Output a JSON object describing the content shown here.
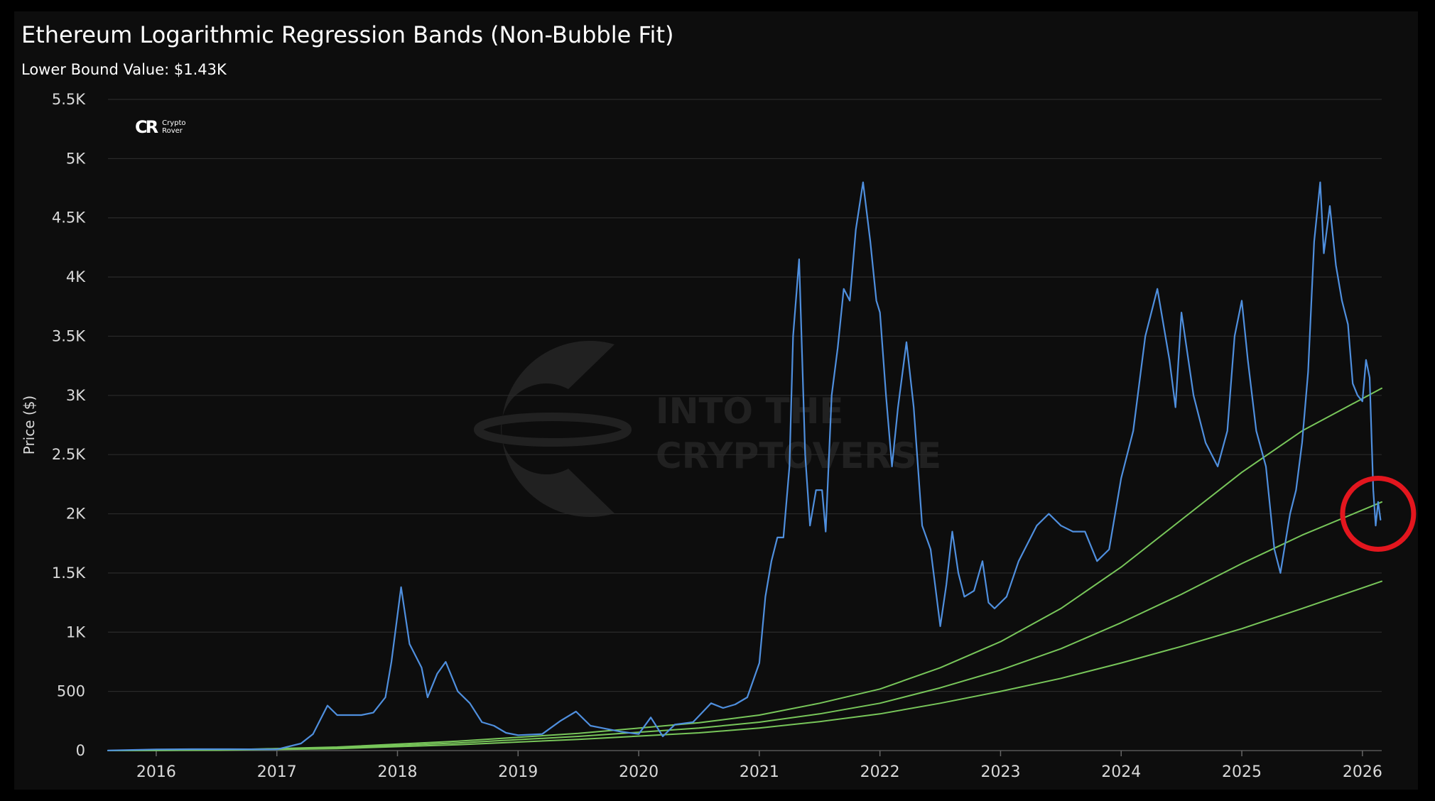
{
  "header": {
    "title": "Ethereum Logarithmic Regression Bands (Non-Bubble Fit)",
    "subtitle": "Lower Bound Value: $1.43K"
  },
  "brand": {
    "mark": "CR",
    "name_line1": "Crypto",
    "name_line2": "Rover"
  },
  "watermark": {
    "line1": "INTO THE",
    "line2": "CRYPTOVERSE"
  },
  "chart_data": {
    "type": "line",
    "title": "Ethereum Logarithmic Regression Bands (Non-Bubble Fit)",
    "xlabel": "",
    "ylabel": "Price ($)",
    "ylim": [
      0,
      5500
    ],
    "xlim": [
      2015.6,
      2026.16
    ],
    "grid": true,
    "y_ticks": [
      0,
      500,
      1000,
      1500,
      2000,
      2500,
      3000,
      3500,
      4000,
      4500,
      5000,
      5500
    ],
    "y_tick_labels": [
      "0",
      "500",
      "1K",
      "1.5K",
      "2K",
      "2.5K",
      "3K",
      "3.5K",
      "4K",
      "4.5K",
      "5K",
      "5.5K"
    ],
    "x_ticks": [
      2016,
      2017,
      2018,
      2019,
      2020,
      2021,
      2022,
      2023,
      2024,
      2025,
      2026
    ],
    "x_tick_labels": [
      "2016",
      "2017",
      "2018",
      "2019",
      "2020",
      "2021",
      "2022",
      "2023",
      "2024",
      "2025",
      "2026"
    ],
    "series": [
      {
        "kind": "price",
        "color": "#4f8fde",
        "x": [
          2015.6,
          2016.0,
          2016.3,
          2016.6,
          2017.0,
          2017.2,
          2017.3,
          2017.42,
          2017.5,
          2017.6,
          2017.7,
          2017.8,
          2017.9,
          2017.95,
          2018.03,
          2018.1,
          2018.2,
          2018.25,
          2018.33,
          2018.4,
          2018.5,
          2018.6,
          2018.7,
          2018.8,
          2018.9,
          2019.0,
          2019.2,
          2019.35,
          2019.48,
          2019.6,
          2019.7,
          2019.85,
          2020.0,
          2020.1,
          2020.2,
          2020.3,
          2020.45,
          2020.6,
          2020.7,
          2020.8,
          2020.9,
          2021.0,
          2021.05,
          2021.1,
          2021.15,
          2021.2,
          2021.25,
          2021.28,
          2021.33,
          2021.38,
          2021.42,
          2021.47,
          2021.52,
          2021.55,
          2021.6,
          2021.65,
          2021.7,
          2021.75,
          2021.8,
          2021.86,
          2021.92,
          2021.97,
          2022.0,
          2022.05,
          2022.1,
          2022.15,
          2022.22,
          2022.28,
          2022.35,
          2022.42,
          2022.5,
          2022.55,
          2022.6,
          2022.65,
          2022.7,
          2022.78,
          2022.85,
          2022.9,
          2022.95,
          2023.05,
          2023.15,
          2023.25,
          2023.3,
          2023.4,
          2023.5,
          2023.6,
          2023.7,
          2023.8,
          2023.9,
          2024.0,
          2024.1,
          2024.2,
          2024.3,
          2024.4,
          2024.45,
          2024.5,
          2024.6,
          2024.7,
          2024.8,
          2024.88,
          2024.94,
          2025.0,
          2025.05,
          2025.12,
          2025.2,
          2025.27,
          2025.32,
          2025.4,
          2025.45,
          2025.5,
          2025.55,
          2025.6,
          2025.65,
          2025.68,
          2025.73,
          2025.78,
          2025.83,
          2025.88,
          2025.92,
          2025.96,
          2026.0,
          2026.03,
          2026.06,
          2026.09,
          2026.11,
          2026.13,
          2026.15
        ],
        "y": [
          1,
          10,
          12,
          12,
          10,
          60,
          140,
          380,
          300,
          300,
          300,
          320,
          450,
          750,
          1380,
          900,
          700,
          450,
          650,
          750,
          500,
          400,
          240,
          210,
          150,
          130,
          140,
          250,
          330,
          210,
          190,
          160,
          140,
          280,
          120,
          220,
          240,
          400,
          360,
          390,
          450,
          740,
          1300,
          1600,
          1800,
          1800,
          2400,
          3500,
          4150,
          2500,
          1900,
          2200,
          2200,
          1850,
          3000,
          3400,
          3900,
          3800,
          4400,
          4800,
          4300,
          3800,
          3700,
          3000,
          2400,
          2900,
          3450,
          2900,
          1900,
          1700,
          1050,
          1400,
          1850,
          1500,
          1300,
          1350,
          1600,
          1250,
          1200,
          1300,
          1600,
          1800,
          1900,
          2000,
          1900,
          1850,
          1850,
          1600,
          1700,
          2300,
          2700,
          3500,
          3900,
          3300,
          2900,
          3700,
          3000,
          2600,
          2400,
          2700,
          3500,
          3800,
          3300,
          2700,
          2400,
          1700,
          1500,
          2000,
          2200,
          2600,
          3200,
          4300,
          4800,
          4200,
          4600,
          4100,
          3800,
          3600,
          3100,
          3000,
          2950,
          3300,
          3150,
          2200,
          1900,
          2100,
          1950
        ]
      },
      {
        "kind": "regression-upper",
        "color": "#78c65a",
        "x": [
          2015.6,
          2016.5,
          2017.5,
          2018.5,
          2019.5,
          2020.5,
          2021.0,
          2021.5,
          2022.0,
          2022.5,
          2023.0,
          2023.5,
          2024.0,
          2024.5,
          2025.0,
          2025.5,
          2026.16
        ],
        "y": [
          0,
          5,
          30,
          80,
          145,
          235,
          300,
          400,
          520,
          700,
          920,
          1200,
          1550,
          1950,
          2350,
          2700,
          3060
        ]
      },
      {
        "kind": "regression-middle",
        "color": "#78c65a",
        "x": [
          2015.6,
          2016.5,
          2017.5,
          2018.5,
          2019.5,
          2020.5,
          2021.0,
          2021.5,
          2022.0,
          2022.5,
          2023.0,
          2023.5,
          2024.0,
          2024.5,
          2025.0,
          2025.5,
          2026.16
        ],
        "y": [
          0,
          4,
          22,
          65,
          120,
          190,
          240,
          310,
          400,
          530,
          680,
          860,
          1080,
          1320,
          1580,
          1820,
          2100
        ]
      },
      {
        "kind": "regression-lower",
        "color": "#78c65a",
        "x": [
          2015.6,
          2016.5,
          2017.5,
          2018.5,
          2019.5,
          2020.5,
          2021.0,
          2021.5,
          2022.0,
          2022.5,
          2023.0,
          2023.5,
          2024.0,
          2024.5,
          2025.0,
          2025.5,
          2026.16
        ],
        "y": [
          0,
          3,
          17,
          50,
          95,
          150,
          190,
          245,
          310,
          400,
          500,
          610,
          740,
          880,
          1030,
          1200,
          1430
        ]
      }
    ],
    "annotations": [
      {
        "type": "circle",
        "color": "#e3161e",
        "x": 2026.13,
        "y": 2000
      }
    ],
    "colors": {
      "background": "#0d0d0d",
      "grid": "#2a2a2a",
      "axis_text": "#d9d9d9"
    }
  }
}
